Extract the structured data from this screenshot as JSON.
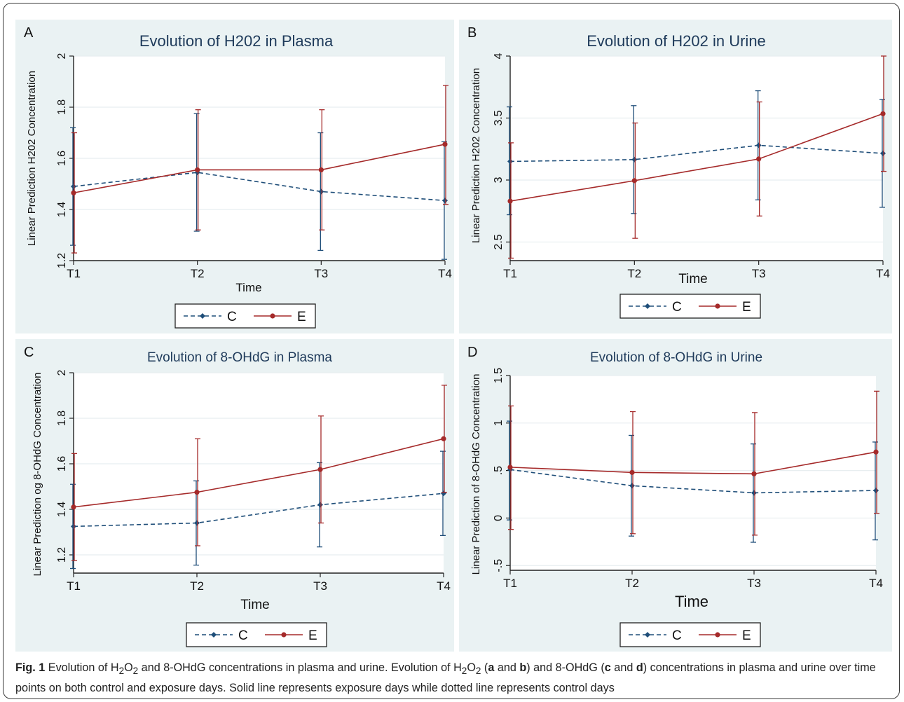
{
  "chart_data": [
    {
      "type": "line",
      "panel_letter": "A",
      "title": "Evolution of H202 in Plasma",
      "xlabel": "Time",
      "ylabel": "Linear Prediction H202 Concentration",
      "categories": [
        "T1",
        "T2",
        "T3",
        "T4"
      ],
      "ylim": [
        1.2,
        2.0
      ],
      "yticks": [
        1.2,
        1.4,
        1.6,
        1.8,
        2.0
      ],
      "ytick_labels": [
        "1.2",
        "1.4",
        "1.6",
        "1.8",
        "2"
      ],
      "series": [
        {
          "name": "C",
          "style": "dashed",
          "color": "#1f4e79",
          "values": [
            1.49,
            1.545,
            1.47,
            1.435
          ],
          "ci_low": [
            1.26,
            1.315,
            1.24,
            1.205
          ],
          "ci_high": [
            1.72,
            1.775,
            1.7,
            1.665
          ]
        },
        {
          "name": "E",
          "style": "solid",
          "color": "#a52a2a",
          "values": [
            1.465,
            1.555,
            1.555,
            1.655
          ],
          "ci_low": [
            1.23,
            1.32,
            1.32,
            1.42
          ],
          "ci_high": [
            1.7,
            1.79,
            1.79,
            1.885
          ]
        }
      ],
      "legend": "bottom"
    },
    {
      "type": "line",
      "panel_letter": "B",
      "title": "Evolution of H202 in Urine",
      "xlabel": "Time",
      "ylabel": "Linear Prediction H202 Concentration",
      "categories": [
        "T1",
        "T2",
        "T3",
        "T4"
      ],
      "ylim": [
        2.35,
        4.0
      ],
      "yticks": [
        2.5,
        3.0,
        3.5,
        4.0
      ],
      "ytick_labels": [
        "2.5",
        "3",
        "3.5",
        "4"
      ],
      "series": [
        {
          "name": "C",
          "style": "dashed",
          "color": "#1f4e79",
          "values": [
            3.15,
            3.165,
            3.28,
            3.215
          ],
          "ci_low": [
            2.72,
            2.73,
            2.84,
            2.78
          ],
          "ci_high": [
            3.59,
            3.6,
            3.72,
            3.65
          ]
        },
        {
          "name": "E",
          "style": "solid",
          "color": "#a52a2a",
          "values": [
            2.83,
            2.995,
            3.17,
            3.535
          ],
          "ci_low": [
            2.37,
            2.53,
            2.71,
            3.07
          ],
          "ci_high": [
            3.3,
            3.46,
            3.63,
            4.0
          ]
        }
      ],
      "legend": "bottom"
    },
    {
      "type": "line",
      "panel_letter": "C",
      "title": "Evolution of 8-OHdG in Plasma",
      "xlabel": "Time",
      "ylabel": "Linear Prediction og 8-OHdG Concentration",
      "categories": [
        "T1",
        "T2",
        "T3",
        "T4"
      ],
      "ylim": [
        1.12,
        2.0
      ],
      "yticks": [
        1.2,
        1.4,
        1.6,
        1.8,
        2.0
      ],
      "ytick_labels": [
        "1.2",
        "1.4",
        "1.6",
        "1.8",
        "2"
      ],
      "series": [
        {
          "name": "C",
          "style": "dashed",
          "color": "#1f4e79",
          "values": [
            1.325,
            1.34,
            1.42,
            1.47
          ],
          "ci_low": [
            1.14,
            1.155,
            1.235,
            1.285
          ],
          "ci_high": [
            1.51,
            1.525,
            1.605,
            1.655
          ]
        },
        {
          "name": "E",
          "style": "solid",
          "color": "#a52a2a",
          "values": [
            1.41,
            1.475,
            1.575,
            1.71
          ],
          "ci_low": [
            1.175,
            1.24,
            1.34,
            1.475
          ],
          "ci_high": [
            1.645,
            1.71,
            1.81,
            1.945
          ]
        }
      ],
      "legend": "bottom"
    },
    {
      "type": "line",
      "panel_letter": "D",
      "title": "Evolution of 8-OHdG in Urine",
      "xlabel": "Time",
      "ylabel": "Linear Prediction of 8-OHdG Concentration",
      "categories": [
        "T1",
        "T2",
        "T3",
        "T4"
      ],
      "ylim": [
        -0.55,
        1.5
      ],
      "yticks": [
        -0.5,
        0,
        0.5,
        1.0,
        1.5
      ],
      "ytick_labels": [
        "-.5",
        "0",
        ".5",
        "1",
        "1.5"
      ],
      "series": [
        {
          "name": "C",
          "style": "dashed",
          "color": "#1f4e79",
          "values": [
            0.51,
            0.34,
            0.265,
            0.29
          ],
          "ci_low": [
            -0.02,
            -0.19,
            -0.255,
            -0.23
          ],
          "ci_high": [
            1.02,
            0.87,
            0.78,
            0.8
          ]
        },
        {
          "name": "E",
          "style": "solid",
          "color": "#a52a2a",
          "values": [
            0.535,
            0.48,
            0.465,
            0.695
          ],
          "ci_low": [
            -0.12,
            -0.165,
            -0.18,
            0.05
          ],
          "ci_high": [
            1.18,
            1.12,
            1.11,
            1.335
          ]
        }
      ],
      "legend": "bottom"
    }
  ],
  "caption": {
    "fig_label": "Fig. 1",
    "text1": " Evolution of H",
    "sub1": "2",
    "text2": "O",
    "sub2": "2",
    "text3": " and 8-OHdG concentrations in plasma and urine. Evolution of H",
    "sub3": "2",
    "text4": "O",
    "sub4": "2",
    "text5": " (",
    "b1": "a",
    "text6": " and ",
    "b2": "b",
    "text7": ") and 8-OHdG (",
    "b3": "c",
    "text8": " and ",
    "b4": "d",
    "text9": ") concentrations in plasma and urine over time points on both control and exposure days. Solid line represents exposure days while dotted line represents control days"
  }
}
